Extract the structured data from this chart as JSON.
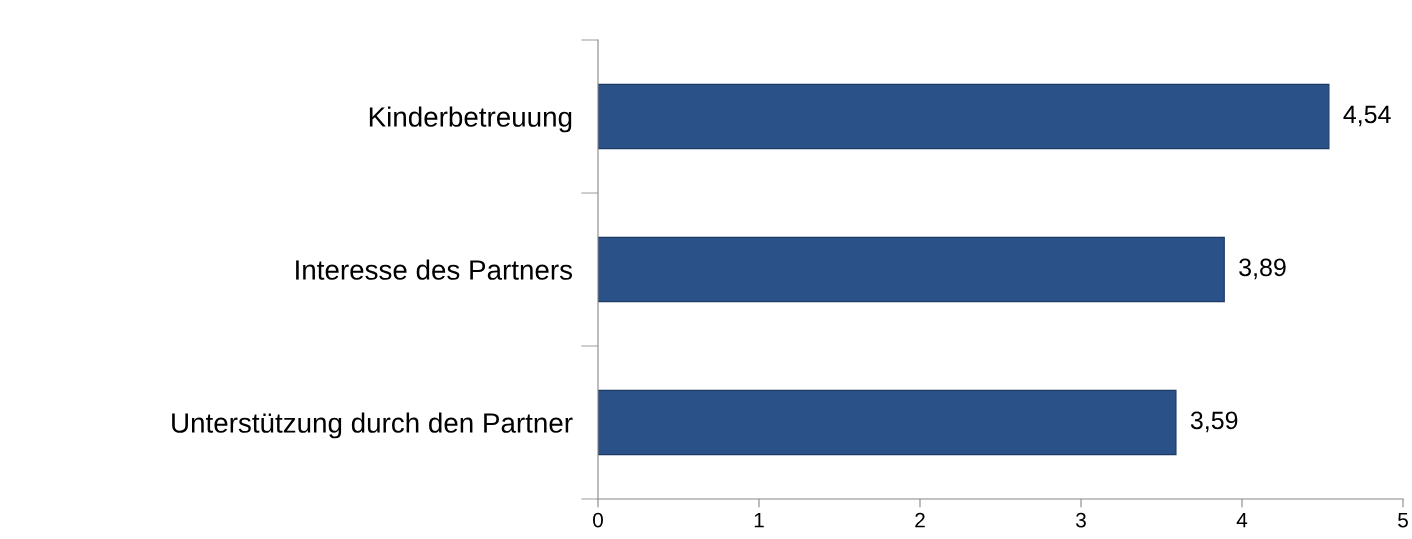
{
  "chart_data": {
    "type": "bar",
    "orientation": "horizontal",
    "categories": [
      "Kinderbetreuung",
      "Interesse des Partners",
      "Unterstützung durch den Partner"
    ],
    "values": [
      4.54,
      3.89,
      3.59
    ],
    "value_labels": [
      "4,54",
      "3,89",
      "3,59"
    ],
    "color": "#2a5289",
    "xlim": [
      0,
      5
    ],
    "xticks": [
      0,
      1,
      2,
      3,
      4,
      5
    ],
    "grid": false,
    "legend": false
  }
}
